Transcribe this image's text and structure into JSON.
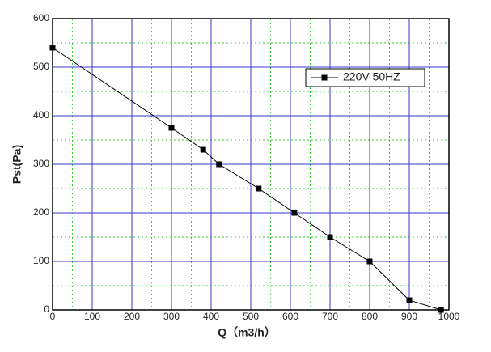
{
  "chart_data": {
    "type": "line",
    "xlabel": "Q（m3/h）",
    "ylabel": "Pst(Pa)",
    "x": [
      0,
      300,
      380,
      420,
      520,
      610,
      700,
      800,
      900,
      980
    ],
    "series": [
      {
        "name": "220V 50HZ",
        "color": "#000000",
        "marker": "square",
        "values": [
          540,
          375,
          330,
          300,
          250,
          200,
          150,
          100,
          20,
          0
        ]
      }
    ],
    "xlim": [
      0,
      1000
    ],
    "xticks": [
      0,
      100,
      200,
      300,
      400,
      500,
      600,
      700,
      800,
      900,
      1000
    ],
    "ylim": [
      0,
      600
    ],
    "yticks": [
      0,
      100,
      200,
      300,
      400,
      500,
      600
    ],
    "grid": true,
    "legend": "upper right"
  }
}
